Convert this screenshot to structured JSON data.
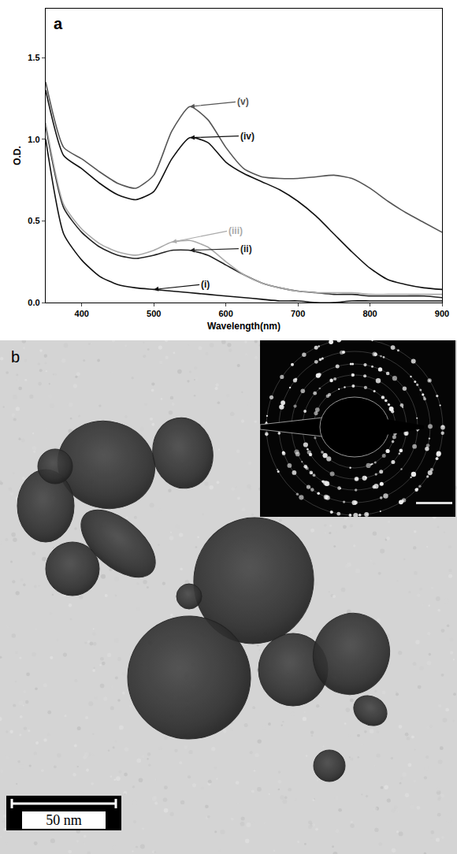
{
  "chart_data": {
    "type": "line",
    "panel_label": "a",
    "x_label": "Wavelength(nm)",
    "y_label": "O.D.",
    "xlim": [
      350,
      900
    ],
    "xticks": [
      400,
      500,
      600,
      700,
      800,
      900
    ],
    "ylim": [
      0,
      1.8
    ],
    "yticks": [
      {
        "value": 0,
        "label": "0.0"
      },
      0.5,
      {
        "value": 1,
        "label": "1.0"
      },
      1.5
    ],
    "grid": false,
    "x": [
      350,
      375,
      400,
      425,
      450,
      475,
      500,
      525,
      550,
      575,
      600,
      625,
      650,
      675,
      700,
      725,
      750,
      775,
      800,
      825,
      850,
      875,
      900
    ],
    "series": [
      {
        "name": "(i)",
        "color": "#111111",
        "values": [
          1.0,
          0.42,
          0.26,
          0.16,
          0.11,
          0.09,
          0.08,
          0.07,
          0.06,
          0.05,
          0.04,
          0.03,
          0.02,
          0.01,
          0.01,
          0.0,
          0.0,
          0.01,
          0.01,
          0.01,
          0.01,
          0.01,
          0.01
        ]
      },
      {
        "name": "(ii)",
        "color": "#222222",
        "values": [
          1.08,
          0.58,
          0.43,
          0.34,
          0.29,
          0.27,
          0.29,
          0.32,
          0.32,
          0.29,
          0.23,
          0.17,
          0.12,
          0.09,
          0.07,
          0.06,
          0.05,
          0.05,
          0.04,
          0.04,
          0.04,
          0.04,
          0.03
        ]
      },
      {
        "name": "(iii)",
        "color": "#aaaaaa",
        "values": [
          1.1,
          0.6,
          0.45,
          0.36,
          0.31,
          0.29,
          0.32,
          0.37,
          0.38,
          0.34,
          0.25,
          0.17,
          0.12,
          0.09,
          0.07,
          0.06,
          0.06,
          0.06,
          0.05,
          0.05,
          0.05,
          0.05,
          0.05
        ]
      },
      {
        "name": "(iv)",
        "color": "#111111",
        "values": [
          1.3,
          0.9,
          0.82,
          0.73,
          0.66,
          0.63,
          0.68,
          0.88,
          1.01,
          0.98,
          0.86,
          0.79,
          0.74,
          0.69,
          0.62,
          0.53,
          0.42,
          0.31,
          0.21,
          0.14,
          0.11,
          0.09,
          0.08
        ]
      },
      {
        "name": "(v)",
        "color": "#555555",
        "values": [
          1.35,
          0.95,
          0.88,
          0.8,
          0.73,
          0.7,
          0.78,
          1.05,
          1.2,
          1.12,
          0.95,
          0.82,
          0.77,
          0.76,
          0.76,
          0.77,
          0.78,
          0.76,
          0.7,
          0.62,
          0.55,
          0.49,
          0.43
        ]
      }
    ]
  },
  "panel_b": {
    "label": "b",
    "scale_bar": "50 nm"
  }
}
